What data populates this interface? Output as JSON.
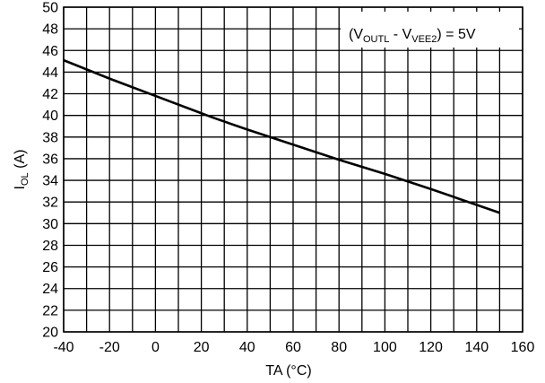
{
  "chart_data": {
    "type": "line",
    "title": "",
    "xlabel": "TA (°C)",
    "ylabel": {
      "main": "I",
      "sub": "OL",
      "suffix": " (A)"
    },
    "xlim": [
      -40,
      160
    ],
    "ylim": [
      20,
      50
    ],
    "xticks": [
      -40,
      -20,
      0,
      20,
      40,
      60,
      80,
      100,
      120,
      140,
      160
    ],
    "yticks": [
      20,
      22,
      24,
      26,
      28,
      30,
      32,
      34,
      36,
      38,
      40,
      42,
      44,
      46,
      48,
      50
    ],
    "x_minor_step": 10,
    "grid": true,
    "legend": "none",
    "annotation": {
      "open": "(V",
      "sub1": "OUTL",
      "mid": " - V",
      "sub2": "VEE2",
      "close": ") = 5V"
    },
    "series": [
      {
        "x": [
          -40,
          -20,
          0,
          20,
          25,
          40,
          60,
          80,
          100,
          120,
          150
        ],
        "y": [
          45.1,
          43.4,
          41.8,
          40.2,
          39.8,
          38.7,
          37.3,
          35.9,
          34.6,
          33.2,
          31.0
        ],
        "color": "#000000"
      }
    ]
  }
}
